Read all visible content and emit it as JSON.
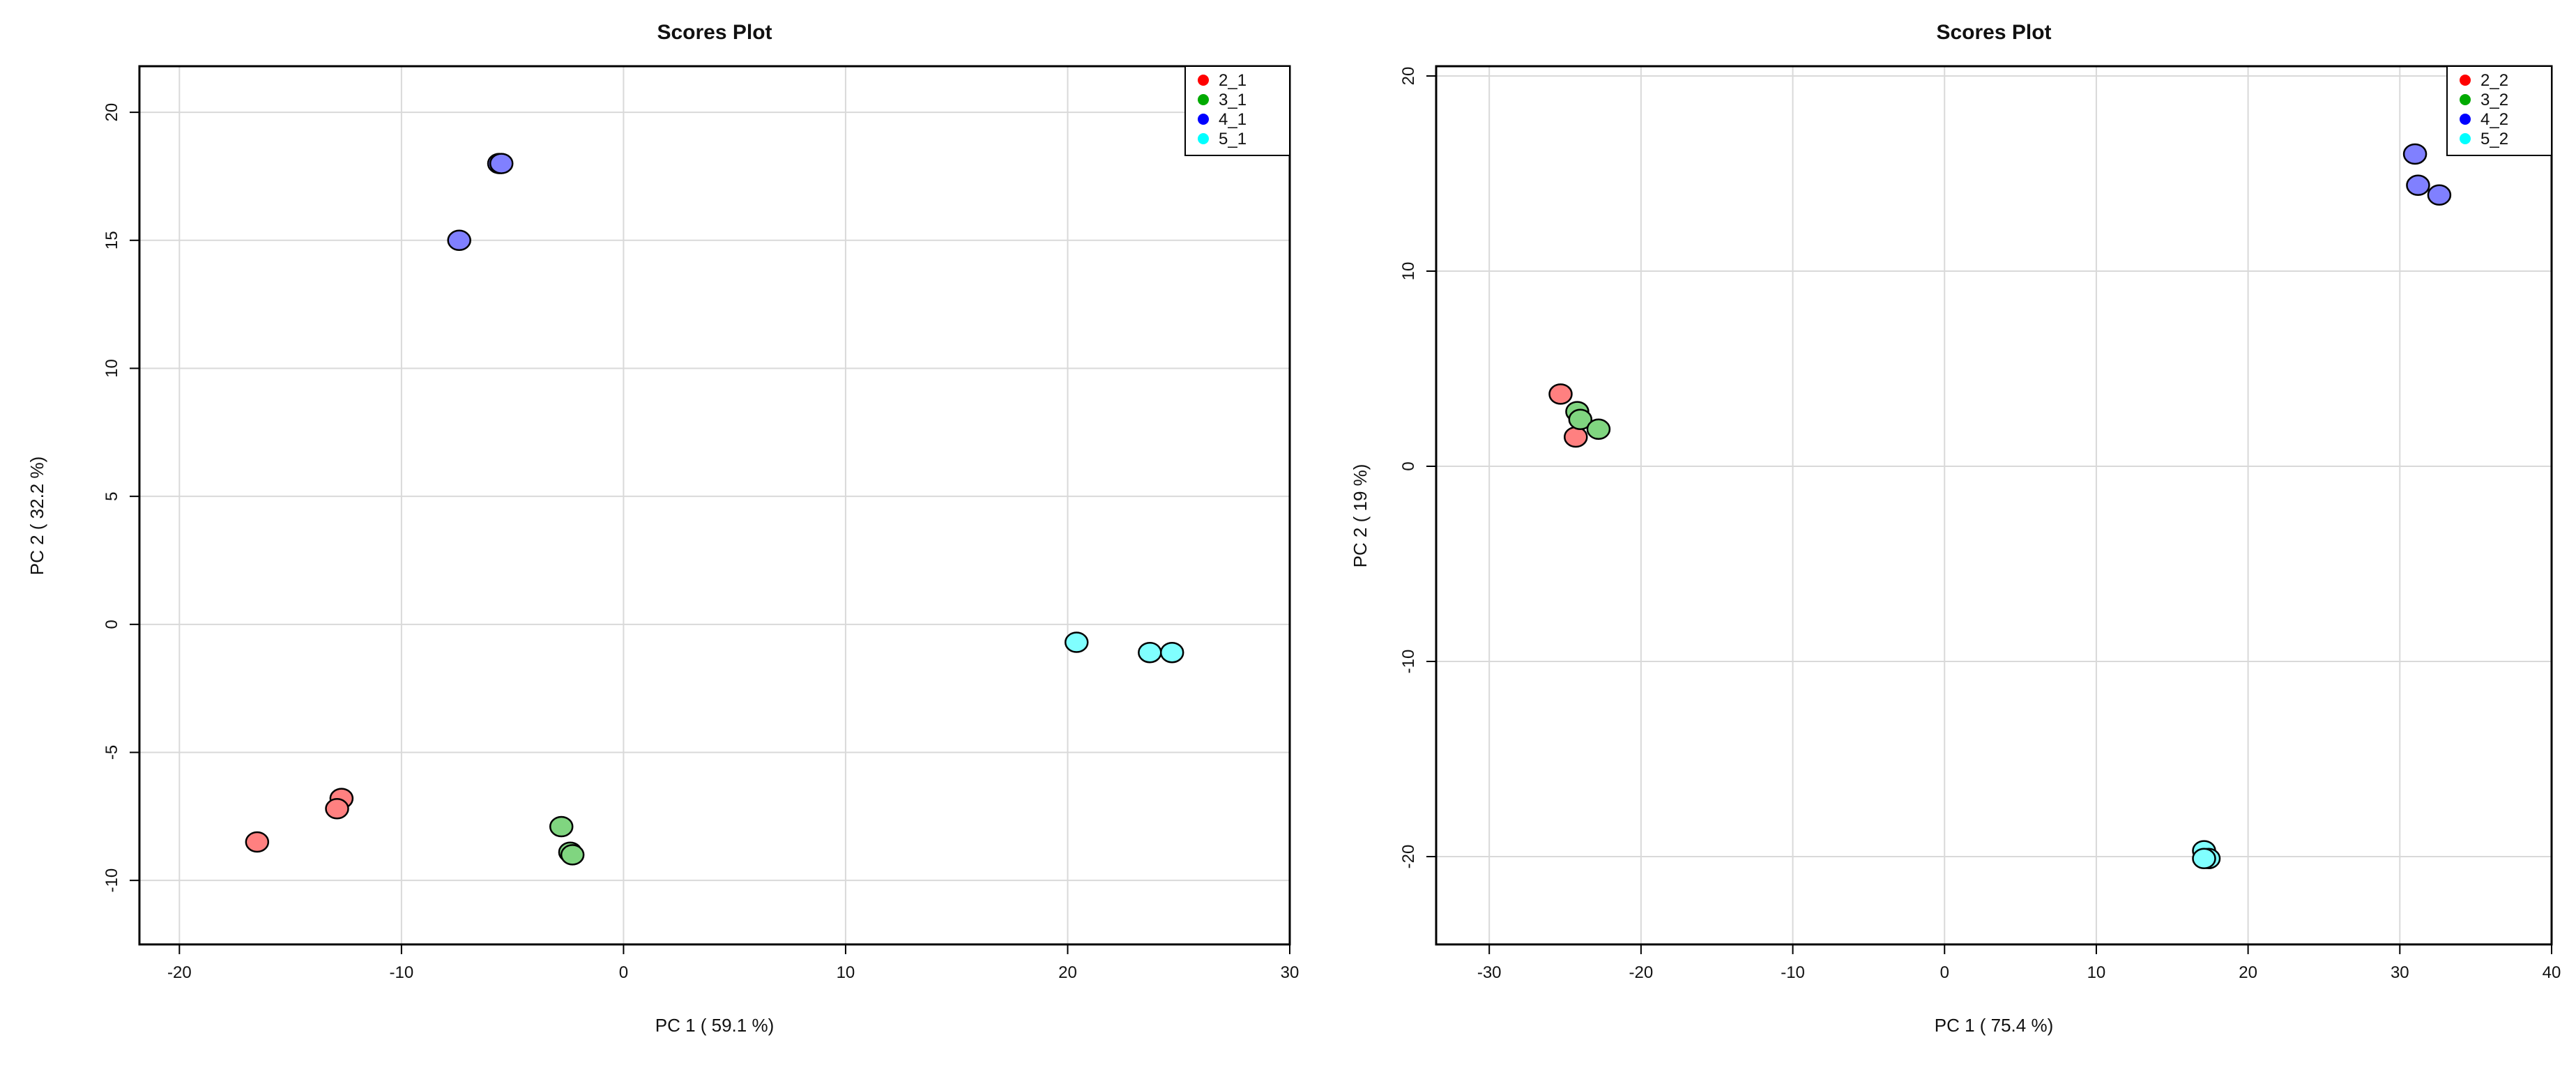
{
  "chart_data": [
    {
      "type": "scatter",
      "title": "Scores Plot",
      "xlabel": "PC 1 ( 59.1 %)",
      "ylabel": "PC 2 ( 32.2 %)",
      "xlim": [
        -21.8,
        30.0
      ],
      "ylim": [
        -12.5,
        21.8
      ],
      "xticks": [
        -20,
        -10,
        0,
        10,
        20,
        30
      ],
      "yticks": [
        -10,
        -5,
        0,
        5,
        10,
        15,
        20
      ],
      "grid": true,
      "legend_position": "top-right",
      "series": [
        {
          "name": "2_1",
          "color": "#ff0000",
          "points": [
            [
              -16.5,
              -8.5
            ],
            [
              -12.7,
              -6.8
            ],
            [
              -12.9,
              -7.2
            ]
          ]
        },
        {
          "name": "3_1",
          "color": "#00aa00",
          "points": [
            [
              -2.8,
              -7.9
            ],
            [
              -2.4,
              -8.9
            ],
            [
              -2.3,
              -9.0
            ]
          ]
        },
        {
          "name": "4_1",
          "color": "#0000ff",
          "points": [
            [
              -7.4,
              15.0
            ],
            [
              -5.6,
              18.0
            ],
            [
              -5.5,
              18.0
            ]
          ]
        },
        {
          "name": "5_1",
          "color": "#00ffff",
          "points": [
            [
              20.4,
              -0.7
            ],
            [
              23.7,
              -1.1
            ],
            [
              24.7,
              -1.1
            ]
          ]
        }
      ]
    },
    {
      "type": "scatter",
      "title": "Scores Plot",
      "xlabel": "PC 1 ( 75.4 %)",
      "ylabel": "PC 2 ( 19 %)",
      "xlim": [
        -33.5,
        40.0
      ],
      "ylim": [
        -24.5,
        20.5
      ],
      "xticks": [
        -30,
        -20,
        -10,
        0,
        10,
        20,
        30,
        40
      ],
      "yticks": [
        -20,
        -10,
        0,
        10,
        20
      ],
      "grid": true,
      "legend_position": "top-right",
      "series": [
        {
          "name": "2_2",
          "color": "#ff0000",
          "points": [
            [
              -25.3,
              3.7
            ],
            [
              -24.3,
              1.5
            ]
          ]
        },
        {
          "name": "3_2",
          "color": "#00aa00",
          "points": [
            [
              -24.2,
              2.8
            ],
            [
              -24.0,
              2.4
            ],
            [
              -22.8,
              1.9
            ]
          ]
        },
        {
          "name": "4_2",
          "color": "#0000ff",
          "points": [
            [
              31.0,
              16.0
            ],
            [
              31.2,
              14.4
            ],
            [
              32.6,
              13.9
            ]
          ]
        },
        {
          "name": "5_2",
          "color": "#00ffff",
          "points": [
            [
              17.1,
              -19.7
            ],
            [
              17.4,
              -20.1
            ],
            [
              17.1,
              -20.1
            ]
          ]
        }
      ]
    }
  ]
}
